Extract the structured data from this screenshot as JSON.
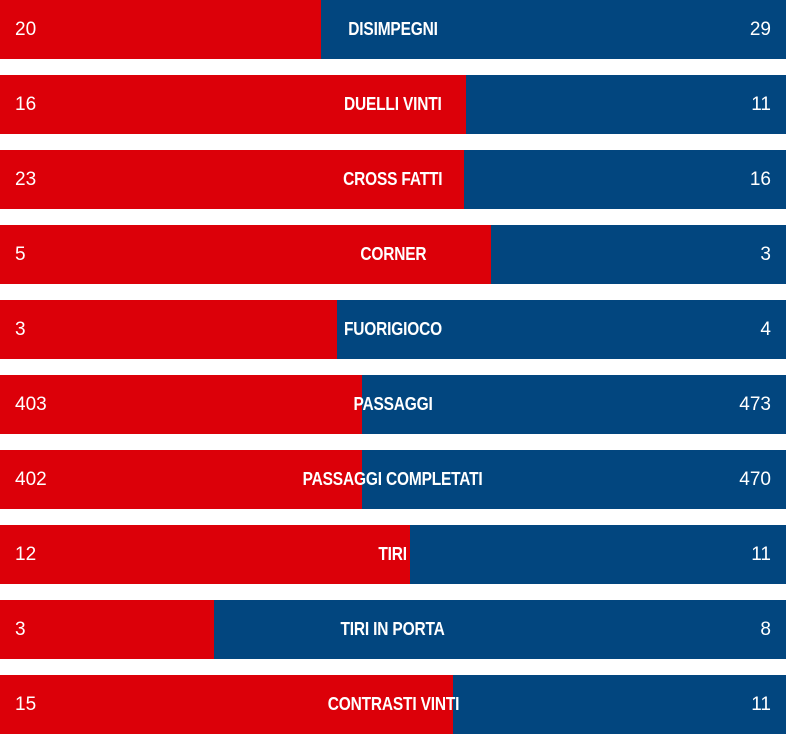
{
  "colors": {
    "home": "#dc0009",
    "away": "#02467f"
  },
  "chart_data": {
    "type": "bar",
    "orientation": "horizontal-stacked-comparison",
    "categories": [
      "DISIMPEGNI",
      "DUELLI VINTI",
      "CROSS FATTI",
      "CORNER",
      "FUORIGIOCO",
      "PASSAGGI",
      "PASSAGGI COMPLETATI",
      "TIRI",
      "TIRI IN PORTA",
      "CONTRASTI VINTI"
    ],
    "series": [
      {
        "name": "home",
        "values": [
          20,
          16,
          23,
          5,
          3,
          403,
          402,
          12,
          3,
          15
        ]
      },
      {
        "name": "away",
        "values": [
          29,
          11,
          16,
          3,
          4,
          473,
          470,
          11,
          8,
          11
        ]
      }
    ]
  }
}
